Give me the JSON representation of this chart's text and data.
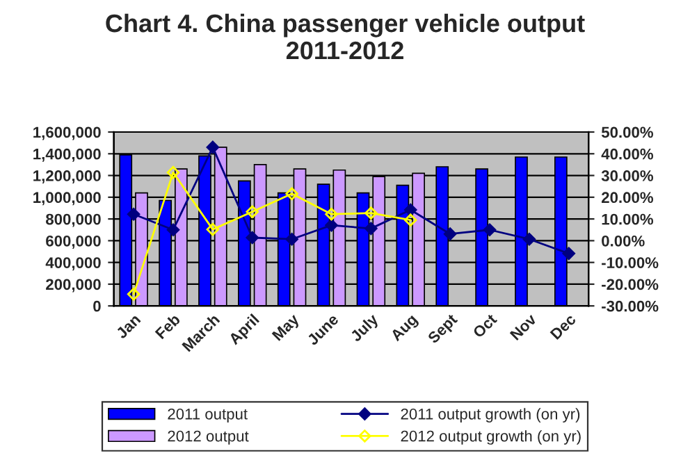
{
  "chart_data": {
    "type": "bar",
    "title": "Chart 4. China passenger vehicle output\n2011-2012",
    "categories": [
      "Jan",
      "Feb",
      "March",
      "April",
      "May",
      "June",
      "July",
      "Aug",
      "Sept",
      "Oct",
      "Nov",
      "Dec"
    ],
    "series": [
      {
        "name": "2011 output",
        "color": "#0000ff",
        "values": [
          1390000,
          970000,
          1380000,
          1150000,
          1040000,
          1120000,
          1040000,
          1110000,
          1280000,
          1260000,
          1370000,
          1370000
        ]
      },
      {
        "name": "2012 output",
        "color": "#cc99ff",
        "values": [
          1040000,
          1260000,
          1460000,
          1300000,
          1260000,
          1250000,
          1190000,
          1220000,
          null,
          null,
          null,
          null
        ]
      },
      {
        "name": "2011 output growth (on yr)",
        "type": "line",
        "axis": "y2",
        "color": "#000080",
        "values": [
          12.2,
          5.0,
          43.0,
          1.4,
          0.7,
          7.1,
          5.6,
          14.2,
          3.1,
          5.0,
          0.7,
          -5.9
        ]
      },
      {
        "name": "2012 output growth (on yr)",
        "type": "line",
        "axis": "y2",
        "color": "#ffff00",
        "values": [
          -24.6,
          31.4,
          5.2,
          13.3,
          21.6,
          12.2,
          12.7,
          9.5,
          null,
          null,
          null,
          null
        ]
      }
    ],
    "ylim": [
      0,
      1600000
    ],
    "yticks": [
      0,
      {
        "value": 200000,
        "label": "200,000"
      },
      {
        "value": 400000,
        "label": "400,000"
      },
      {
        "value": 600000,
        "label": "600,000"
      },
      {
        "value": 800000,
        "label": "800,000"
      },
      {
        "value": 1000000,
        "label": "1,000,000"
      },
      {
        "value": 1200000,
        "label": "1,200,000"
      },
      {
        "value": 1400000,
        "label": "1,400,000"
      },
      {
        "value": 1600000,
        "label": "1,600,000"
      }
    ],
    "y2lim": [
      -30,
      50
    ],
    "y2ticks": [
      {
        "value": -30,
        "label": "-30.00%"
      },
      {
        "value": -20,
        "label": "-20.00%"
      },
      {
        "value": -10,
        "label": "-10.00%"
      },
      {
        "value": 0,
        "label": "0.00%"
      },
      {
        "value": 10,
        "label": "10.00%"
      },
      {
        "value": 20,
        "label": "20.00%"
      },
      {
        "value": 30,
        "label": "30.00%"
      },
      {
        "value": 40,
        "label": "40.00%"
      },
      {
        "value": 50,
        "label": "50.00%"
      }
    ],
    "grid": "y",
    "legend": "bottom",
    "marker": "diamond",
    "line_style": "solid"
  }
}
